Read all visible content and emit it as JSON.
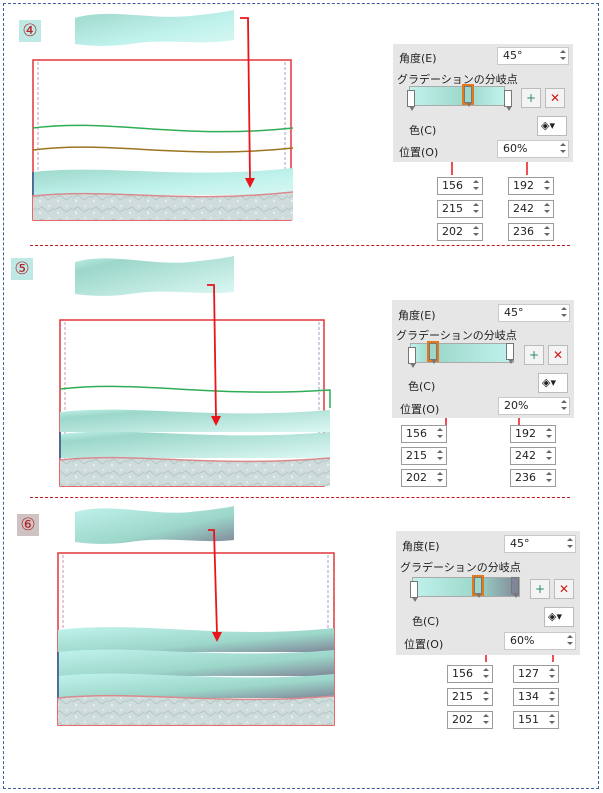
{
  "steps": [
    {
      "number": "④",
      "dialog": {
        "angle_label": "角度(E)",
        "angle_value": "45°",
        "stops_label": "グラデーションの分岐点",
        "color_label": "色(C)",
        "position_label": "位置(O)",
        "position_value": "60%"
      },
      "left_rgb": [
        "156",
        "215",
        "202"
      ],
      "right_rgb": [
        "192",
        "242",
        "236"
      ]
    },
    {
      "number": "⑤",
      "dialog": {
        "angle_label": "角度(E)",
        "angle_value": "45°",
        "stops_label": "グラデーションの分岐点",
        "color_label": "色(C)",
        "position_label": "位置(O)",
        "position_value": "20%"
      },
      "left_rgb": [
        "156",
        "215",
        "202"
      ],
      "right_rgb": [
        "192",
        "242",
        "236"
      ]
    },
    {
      "number": "⑥",
      "dialog": {
        "angle_label": "角度(E)",
        "angle_value": "45°",
        "stops_label": "グラデーションの分岐点",
        "color_label": "色(C)",
        "position_label": "位置(O)",
        "position_value": "60%"
      },
      "left_rgb": [
        "156",
        "215",
        "202"
      ],
      "right_rgb": [
        "127",
        "134",
        "151"
      ]
    }
  ],
  "colors": {
    "frame_red": "#e2363a",
    "arrow_red": "#e8151b",
    "arrow_blue": "#4a74c9",
    "wave_green": "#2fae55",
    "wave_olive": "#9a7420",
    "wave_navy": "#2b4f8c",
    "wave_pink": "#d98a8c",
    "teal_dark": "#9cd7ca",
    "teal_light": "#c0f2ec",
    "slate": "#7f8697"
  }
}
